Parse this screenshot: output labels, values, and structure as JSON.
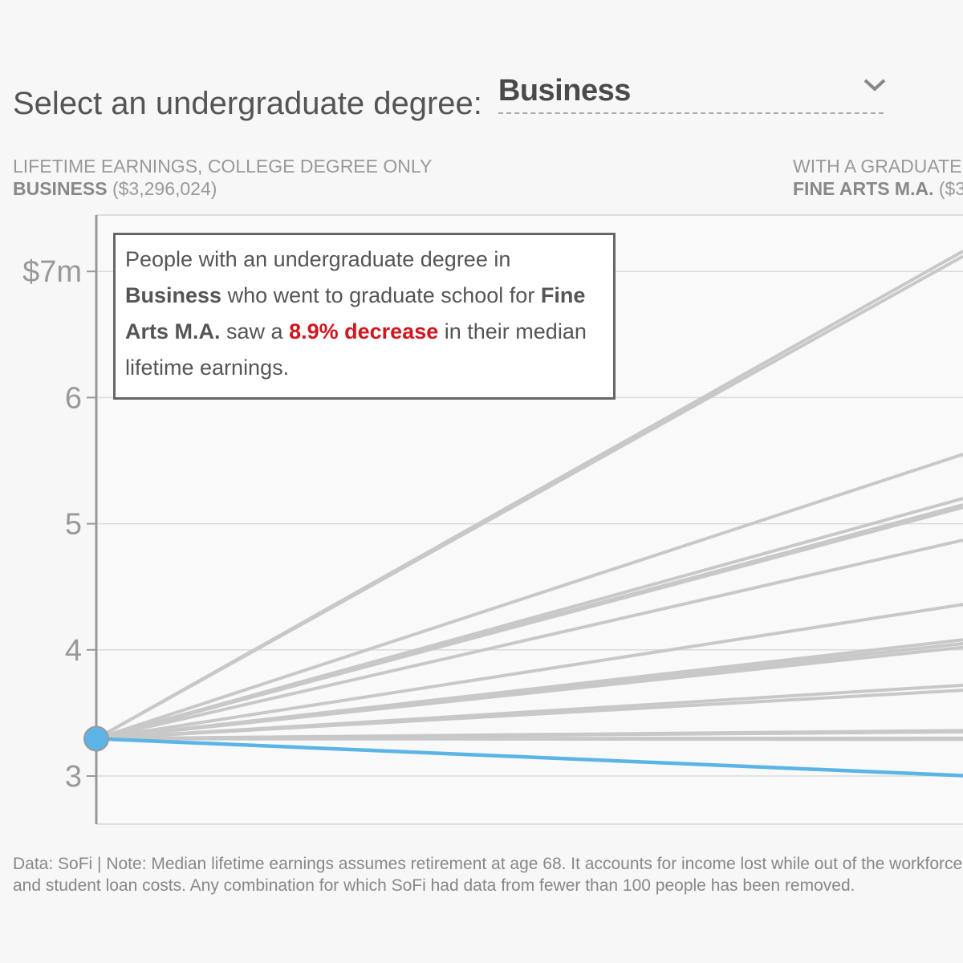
{
  "selector": {
    "label": "Select an undergraduate degree:",
    "value": "Business"
  },
  "headers": {
    "left_title": "LIFETIME EARNINGS, COLLEGE DEGREE ONLY",
    "left_degree": "BUSINESS",
    "left_value": "($3,296,024)",
    "right_title": "WITH A GRADUATE",
    "right_degree": "FINE ARTS M.A.",
    "right_value": "($3"
  },
  "callout": {
    "text_1": "People with an undergraduate degree in",
    "undergrad": "Business",
    "text_2": "who went to graduate school for",
    "grad": "Fine Arts M.A.",
    "text_3": "saw a",
    "change": "8.9% decrease",
    "text_4": "in their median lifetime earnings."
  },
  "footnote": "Data: SoFi | Note: Median lifetime earnings assumes retirement at age 68. It accounts for income lost while out of the workforce and student loan costs. Any combination for which SoFi had data from fewer than 100 people has been removed.",
  "colors": {
    "highlight": "#5ab4e5",
    "other_lines": "#c8c8c8",
    "decrease_text": "#d0161e"
  },
  "chart_data": {
    "type": "line",
    "ylim": [
      2.6,
      7.45
    ],
    "yticks": [
      {
        "value": 7,
        "label": "$7m"
      },
      {
        "value": 6,
        "label": "6"
      },
      {
        "value": 5,
        "label": "5"
      },
      {
        "value": 4,
        "label": "4"
      },
      {
        "value": 3,
        "label": "3"
      }
    ],
    "start_value": 3.296,
    "highlight_end": 3.003,
    "other_ends": [
      7.16,
      7.12,
      5.55,
      5.2,
      5.15,
      5.13,
      4.87,
      4.36,
      4.08,
      4.05,
      4.02,
      3.72,
      3.68,
      3.36,
      3.35,
      3.3,
      3.29
    ]
  }
}
